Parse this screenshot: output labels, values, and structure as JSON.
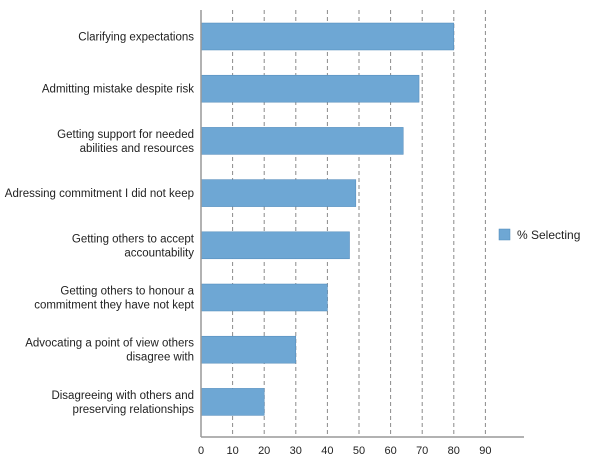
{
  "chart_data": {
    "type": "bar",
    "orientation": "horizontal",
    "categories": [
      [
        "Clarifying expectations"
      ],
      [
        "Admitting mistake despite risk"
      ],
      [
        "Getting support for needed",
        "abilities and resources"
      ],
      [
        "Adressing commitment I did not keep"
      ],
      [
        "Getting others to accept",
        "accountability"
      ],
      [
        "Getting others to honour a",
        "commitment they have not kept"
      ],
      [
        "Advocating a point of view others",
        "disagree with"
      ],
      [
        "Disagreeing with others and",
        "preserving relationships"
      ]
    ],
    "series": [
      {
        "name": "% Selecting",
        "values": [
          80,
          69,
          64,
          49,
          47,
          40,
          30,
          20
        ]
      }
    ],
    "xlim": [
      0,
      90
    ],
    "xticks": [
      0,
      10,
      20,
      30,
      40,
      50,
      60,
      70,
      80,
      90
    ],
    "grid": "vertical dashed",
    "legend": "right",
    "colors": {
      "bar": "#6ea7d4",
      "bar_edge": "#4f88b8",
      "grid": "#8a8a8a",
      "axis": "#999999"
    }
  }
}
